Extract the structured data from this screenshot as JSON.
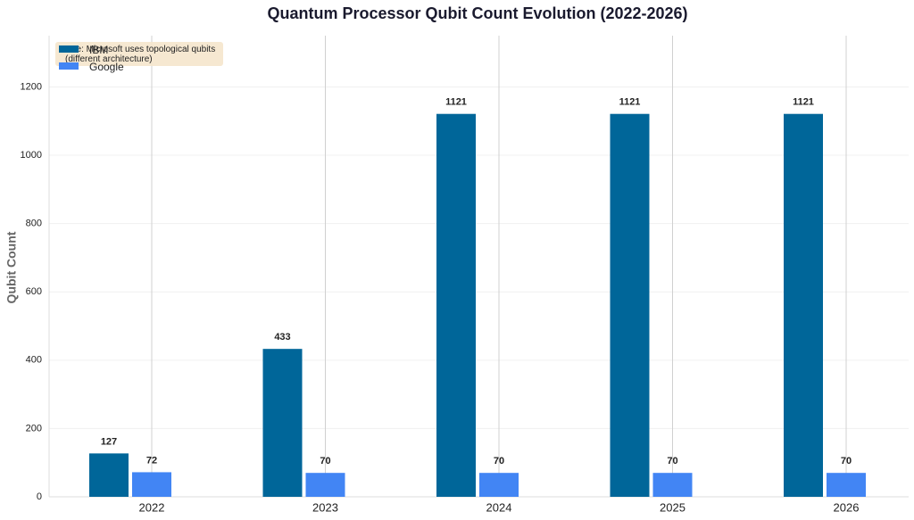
{
  "chart_data": {
    "type": "bar",
    "title": "Quantum Processor Qubit Count Evolution (2022-2026)",
    "y_label": "Qubit Count",
    "annotation": "Note: Microsoft uses topological qubits (different architecture)",
    "categories": [
      "2022",
      "2023",
      "2024",
      "2025",
      "2026"
    ],
    "series": [
      {
        "name": "IBM",
        "color": "#006699",
        "values": [
          127,
          433,
          1121,
          1121,
          1121
        ]
      },
      {
        "name": "Google",
        "color": "#4285f4",
        "values": [
          72,
          70,
          70,
          70,
          70
        ]
      }
    ],
    "ylim": [
      0,
      1350
    ],
    "yticks": [
      0,
      200,
      400,
      600,
      800,
      1000,
      1200
    ],
    "grid": true,
    "legend": "upper left"
  }
}
